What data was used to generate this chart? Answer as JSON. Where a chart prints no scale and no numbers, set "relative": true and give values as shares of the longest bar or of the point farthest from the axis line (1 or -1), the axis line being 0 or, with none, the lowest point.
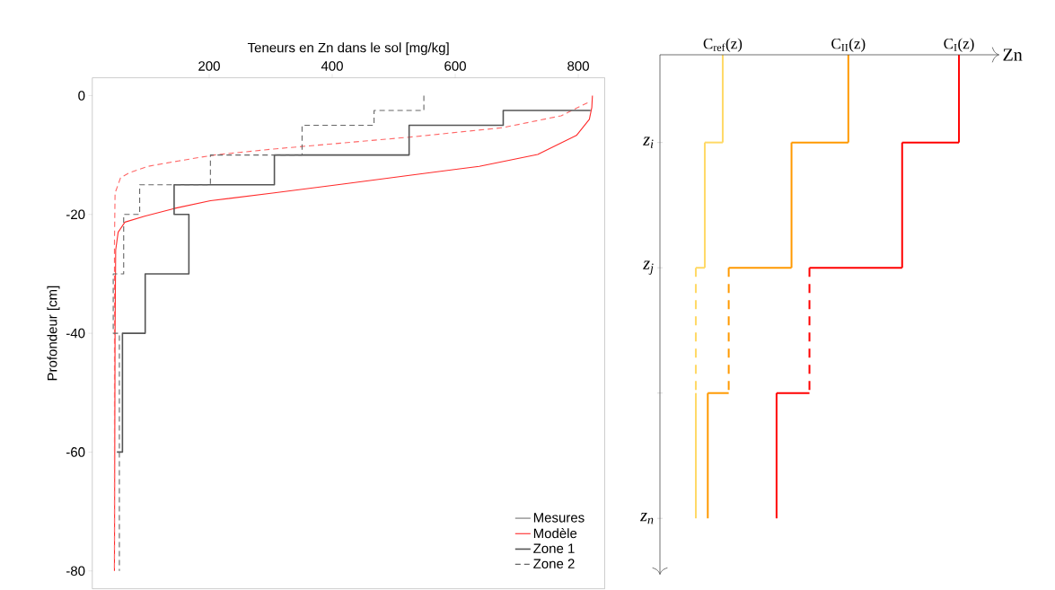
{
  "chart_data": [
    {
      "type": "line",
      "xlabel": "Teneurs en Zn dans le sol [mg/kg]",
      "ylabel": "Profondeur [cm]",
      "xlim": [
        10,
        843
      ],
      "ylim": [
        -83,
        3
      ],
      "xticks": [
        200,
        400,
        600,
        800
      ],
      "yticks": [
        0,
        -20,
        -40,
        -60,
        -80
      ],
      "legend": "bottom right",
      "annotations": [
        "Mesures"
      ],
      "series": [
        {
          "name": "Modèle",
          "color": "#ff2a2a",
          "x": [
            823,
            822,
            818,
            797,
            734,
            639,
            520,
            417,
            303,
            202,
            143,
            95,
            63,
            52,
            48,
            47,
            46
          ],
          "values": [
            0,
            -2,
            -4,
            -6.7,
            -9.9,
            -11.9,
            -13.5,
            -14.9,
            -16.4,
            -17.7,
            -19,
            -20.3,
            -21.3,
            -23,
            -26,
            -40,
            -80
          ]
        },
        {
          "color": "#ff6666",
          "line_style": "dashed",
          "x": [
            815,
            772,
            677,
            525,
            303,
            208,
            150,
            101,
            70,
            56,
            47,
            46,
            46
          ],
          "values": [
            -1.2,
            -3.4,
            -5.4,
            -7,
            -9,
            -10,
            -11,
            -11.9,
            -13,
            -13.8,
            -16.4,
            -25,
            -80
          ]
        },
        {
          "name": "Zone 1",
          "color": "#555555",
          "x": [
            820,
            678,
            678,
            525,
            525,
            306,
            306,
            143,
            143,
            167,
            167,
            96,
            96,
            59,
            59,
            50
          ],
          "values": [
            -2.5,
            -2.5,
            -5,
            -5,
            -10,
            -10,
            -15,
            -15,
            -20,
            -20,
            -30,
            -30,
            -40,
            -40,
            -60,
            -60
          ]
        },
        {
          "name": "Zone 2",
          "color": "#666666",
          "line_style": "dashed",
          "x": [
            549,
            549,
            468,
            468,
            351,
            351,
            202,
            202,
            87,
            87,
            61,
            61,
            44,
            44,
            54,
            54
          ],
          "values": [
            0,
            -2.5,
            -2.5,
            -5,
            -5,
            -10,
            -10,
            -15,
            -15,
            -20,
            -20,
            -30,
            -30,
            -40,
            -40,
            -80
          ]
        }
      ]
    },
    {
      "type": "step",
      "relative": true,
      "orientation": "horizontal",
      "xlabel": "Zn",
      "categories": [
        "z$_{i}$",
        "z$_{j}$",
        null,
        "z$_{n}$"
      ],
      "series": [
        {
          "name": "C$_{ref}$(z)",
          "color": "#ffd966",
          "values": [
            0.21,
            0.15,
            0.12,
            0.12
          ],
          "line_style": [
            "solid",
            "solid",
            "dashed",
            "solid"
          ]
        },
        {
          "name": "C$_{II}$(z)",
          "color": "#ff9900",
          "values": [
            0.63,
            0.44,
            0.23,
            0.16
          ],
          "line_style": [
            "solid",
            "solid",
            "dashed",
            "solid"
          ]
        },
        {
          "name": "C$_{I}$(z)",
          "color": "#ff0000",
          "values": [
            1,
            0.81,
            0.5,
            0.39
          ],
          "line_style": [
            "solid",
            "solid",
            "dashed",
            "solid"
          ]
        }
      ]
    }
  ]
}
